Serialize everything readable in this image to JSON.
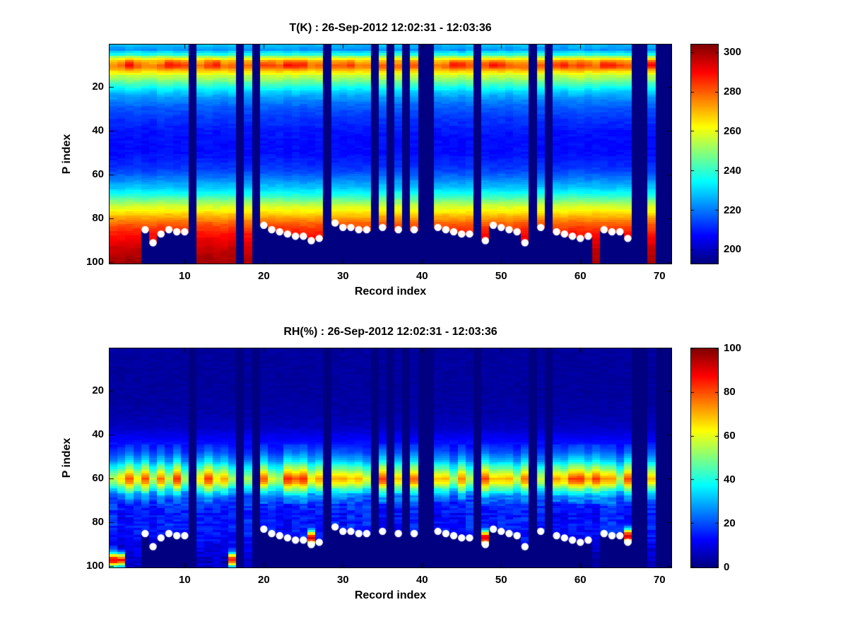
{
  "chart_data": [
    {
      "type": "heatmap",
      "title": "T(K) : 26-Sep-2012 12:02:31 - 12:03:36",
      "xlabel": "Record index",
      "ylabel": "P index",
      "n_records": 71,
      "n_levels": 100,
      "xticks": [
        10,
        20,
        30,
        40,
        50,
        60,
        70
      ],
      "yticks": [
        20,
        40,
        60,
        80,
        100
      ],
      "colormap": "jet",
      "caxis": [
        193,
        304
      ],
      "colorbar_ticks": [
        200,
        220,
        240,
        260,
        280,
        300
      ],
      "profile_p": [
        1,
        3,
        5,
        6,
        8,
        10,
        11,
        13,
        15,
        18,
        22,
        26,
        30,
        35,
        40,
        45,
        50,
        55,
        58,
        62,
        66,
        70,
        74,
        78,
        82,
        86,
        90,
        95,
        100
      ],
      "profile_v": [
        227,
        223,
        238,
        252,
        272,
        280,
        278,
        266,
        255,
        244,
        230,
        221,
        216,
        212,
        209,
        208,
        208,
        211,
        214,
        221,
        229,
        241,
        256,
        268,
        279,
        287,
        292,
        297,
        300
      ],
      "warm_band": {
        "center": 9.5,
        "sigma": 2.2,
        "boost": 9,
        "records": [
          3,
          8,
          9,
          14,
          23,
          24,
          25,
          31,
          44,
          45,
          49,
          50,
          57,
          58,
          63,
          64,
          69
        ]
      }
    },
    {
      "type": "heatmap",
      "title": "RH(%) : 26-Sep-2012 12:02:31 - 12:03:36",
      "xlabel": "Record index",
      "ylabel": "P index",
      "n_records": 71,
      "n_levels": 100,
      "xticks": [
        10,
        20,
        30,
        40,
        50,
        60,
        70
      ],
      "yticks": [
        20,
        40,
        60,
        80,
        100
      ],
      "colormap": "jet",
      "caxis": [
        0,
        100
      ],
      "colorbar_ticks": [
        0,
        20,
        40,
        60,
        80,
        100
      ],
      "profile_p": [
        1,
        20,
        30,
        36,
        40,
        44,
        48,
        52,
        55,
        58,
        60,
        62,
        64,
        66,
        68,
        72,
        76,
        80,
        85,
        90,
        95,
        100
      ],
      "profile_v": [
        3,
        3,
        4,
        6,
        10,
        14,
        20,
        30,
        44,
        58,
        66,
        60,
        47,
        34,
        25,
        17,
        14,
        15,
        14,
        11,
        8,
        6
      ],
      "moist_surface": {
        "records": [
          1,
          2,
          16,
          26,
          48,
          66
        ],
        "boost": 80,
        "sigma": 3
      }
    }
  ],
  "common": {
    "missing_records": [
      11,
      17,
      19,
      28,
      34,
      36,
      38,
      40,
      41,
      47,
      54,
      56,
      67,
      68,
      70,
      71
    ],
    "surface_dots": [
      [
        5,
        85
      ],
      [
        6,
        91
      ],
      [
        7,
        87
      ],
      [
        8,
        85
      ],
      [
        9,
        86
      ],
      [
        10,
        86
      ],
      [
        20,
        83
      ],
      [
        21,
        85
      ],
      [
        22,
        86
      ],
      [
        23,
        87
      ],
      [
        24,
        88
      ],
      [
        25,
        88
      ],
      [
        26,
        90
      ],
      [
        27,
        89
      ],
      [
        29,
        82
      ],
      [
        30,
        84
      ],
      [
        31,
        84
      ],
      [
        32,
        85
      ],
      [
        33,
        85
      ],
      [
        35,
        84
      ],
      [
        37,
        85
      ],
      [
        39,
        85
      ],
      [
        42,
        84
      ],
      [
        43,
        85
      ],
      [
        44,
        86
      ],
      [
        45,
        87
      ],
      [
        46,
        87
      ],
      [
        48,
        90
      ],
      [
        49,
        83
      ],
      [
        50,
        84
      ],
      [
        51,
        85
      ],
      [
        52,
        86
      ],
      [
        53,
        91
      ],
      [
        55,
        84
      ],
      [
        57,
        86
      ],
      [
        58,
        87
      ],
      [
        59,
        88
      ],
      [
        60,
        89
      ],
      [
        61,
        88
      ],
      [
        63,
        85
      ],
      [
        64,
        86
      ],
      [
        65,
        86
      ],
      [
        66,
        89
      ]
    ],
    "dot_color": "#ffffff"
  }
}
